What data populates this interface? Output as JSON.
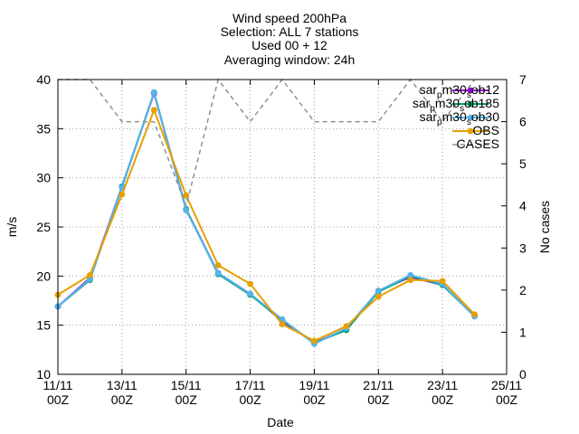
{
  "titles": [
    "Wind speed 200hPa",
    "Selection: ALL      7 stations",
    "Used 00 + 12",
    "Averaging window: 24h"
  ],
  "chart_data": {
    "type": "line",
    "xlabel": "Date",
    "ylabel": "m/s",
    "y2label": "No cases",
    "ylim": [
      10,
      40
    ],
    "y2lim": [
      0,
      7
    ],
    "xticks": [
      {
        "x": 11,
        "line1": "11/11",
        "line2": "00Z"
      },
      {
        "x": 13,
        "line1": "13/11",
        "line2": "00Z"
      },
      {
        "x": 15,
        "line1": "15/11",
        "line2": "00Z"
      },
      {
        "x": 17,
        "line1": "17/11",
        "line2": "00Z"
      },
      {
        "x": 19,
        "line1": "19/11",
        "line2": "00Z"
      },
      {
        "x": 21,
        "line1": "21/11",
        "line2": "00Z"
      },
      {
        "x": 23,
        "line1": "23/11",
        "line2": "00Z"
      },
      {
        "x": 25,
        "line1": "25/11",
        "line2": "00Z"
      }
    ],
    "yticks": [
      "10",
      "15",
      "20",
      "25",
      "30",
      "35",
      "40"
    ],
    "y2ticks": [
      "0",
      "1",
      "2",
      "3",
      "4",
      "5",
      "6",
      "7"
    ],
    "xlim": [
      11,
      25
    ],
    "x": [
      11,
      12,
      13,
      14,
      15,
      16,
      17,
      18,
      19,
      20,
      21,
      22,
      23,
      24
    ],
    "grid": true,
    "legend_position": "top-right",
    "series": [
      {
        "name": "sar_p m30_s ob12",
        "label_parts": [
          "sar",
          "p",
          "m30",
          "s",
          "ob12"
        ],
        "color": "#9400d3",
        "marker": "filled-circle",
        "values": [
          16.9,
          19.8,
          29.1,
          38.6,
          26.8,
          20.3,
          18.2,
          15.4,
          13.2,
          14.6,
          18.5,
          19.9,
          19.1,
          16.0
        ]
      },
      {
        "name": "sar_p m30_s ob185",
        "label_parts": [
          "sar",
          "p",
          "m30",
          "s",
          "ob185"
        ],
        "color": "#009e73",
        "marker": "filled-circle",
        "values": [
          16.9,
          19.6,
          29.1,
          38.7,
          26.8,
          20.2,
          18.1,
          15.5,
          13.2,
          14.5,
          18.4,
          20.0,
          19.1,
          15.9
        ]
      },
      {
        "name": "sar_p m30_s ob30",
        "label_parts": [
          "sar",
          "p",
          "m30",
          "s",
          "ob30"
        ],
        "color": "#56b4e9",
        "marker": "filled-circle",
        "values": [
          16.9,
          19.7,
          29.0,
          38.7,
          26.7,
          20.3,
          18.2,
          15.6,
          13.1,
          14.7,
          18.5,
          20.1,
          19.2,
          15.9
        ]
      },
      {
        "name": "OBS",
        "label_parts": [
          "OBS"
        ],
        "color": "#e69f00",
        "marker": "filled-circle",
        "values": [
          18.1,
          20.1,
          28.3,
          36.9,
          28.2,
          21.1,
          19.2,
          15.1,
          13.4,
          14.9,
          17.9,
          19.6,
          19.5,
          16.1
        ]
      },
      {
        "name": "CASES",
        "label_parts": [
          "CASES"
        ],
        "color": "#909090",
        "marker": "none",
        "dashed": true,
        "axis": "y2",
        "values": [
          7,
          7,
          6,
          6,
          4,
          7,
          6,
          7,
          6,
          6,
          6,
          7,
          6,
          7
        ]
      }
    ]
  }
}
